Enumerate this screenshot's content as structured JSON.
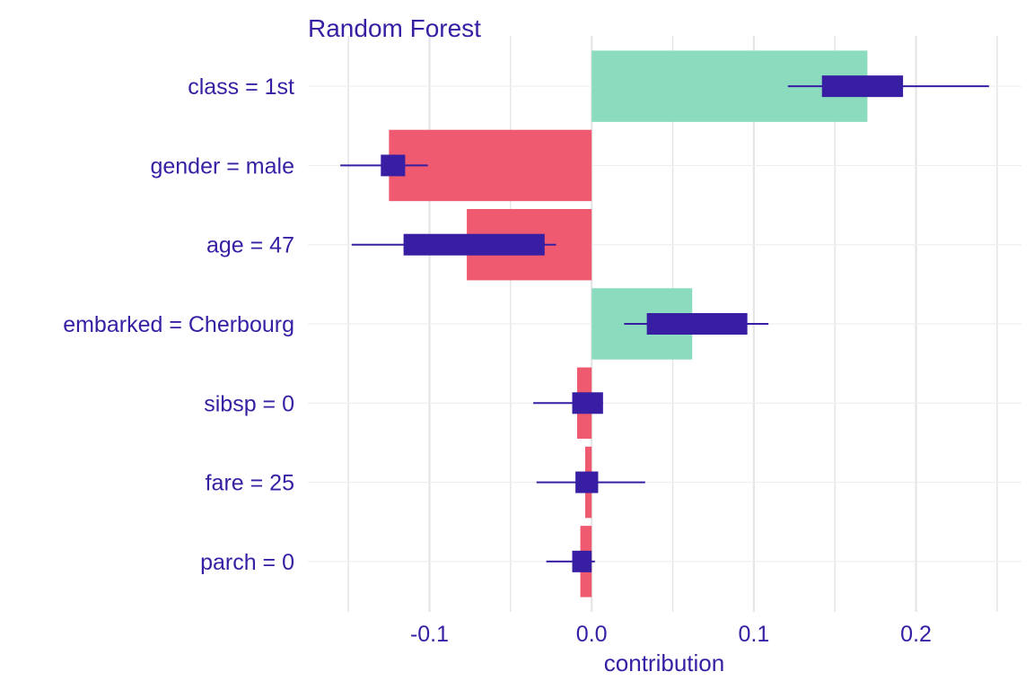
{
  "chart_data": {
    "type": "bar",
    "title": "Random Forest",
    "xlabel": "contribution",
    "ylabel": "",
    "xlim": [
      -0.175,
      0.265
    ],
    "x_ticks": [
      -0.1,
      0.0,
      0.1,
      0.2
    ],
    "x_tick_labels": [
      "-0.1",
      "0.0",
      "0.1",
      "0.2"
    ],
    "grid": true,
    "categories": [
      "class = 1st",
      "gender = male",
      "age = 47",
      "embarked = Cherbourg",
      "sibsp = 0",
      "fare = 25",
      "parch = 0"
    ],
    "values": [
      0.17,
      -0.125,
      -0.077,
      0.062,
      -0.009,
      -0.004,
      -0.007
    ],
    "boxplots": [
      {
        "min": 0.121,
        "q1": 0.142,
        "q3": 0.192,
        "max": 0.245
      },
      {
        "min": -0.155,
        "q1": -0.13,
        "q3": -0.115,
        "max": -0.101
      },
      {
        "min": -0.148,
        "q1": -0.116,
        "q3": -0.029,
        "max": -0.022
      },
      {
        "min": 0.02,
        "q1": 0.034,
        "q3": 0.096,
        "max": 0.109
      },
      {
        "min": -0.036,
        "q1": -0.012,
        "q3": 0.007,
        "max": 0.007
      },
      {
        "min": -0.034,
        "q1": -0.01,
        "q3": 0.004,
        "max": 0.033
      },
      {
        "min": -0.028,
        "q1": -0.012,
        "q3": 0.0,
        "max": 0.002
      }
    ],
    "colors": {
      "positive": "#8bdcbe",
      "negative": "#f05a71",
      "boxplot": "#371ea3",
      "text": "#371ea3",
      "grid": "#e5e5e5"
    }
  }
}
